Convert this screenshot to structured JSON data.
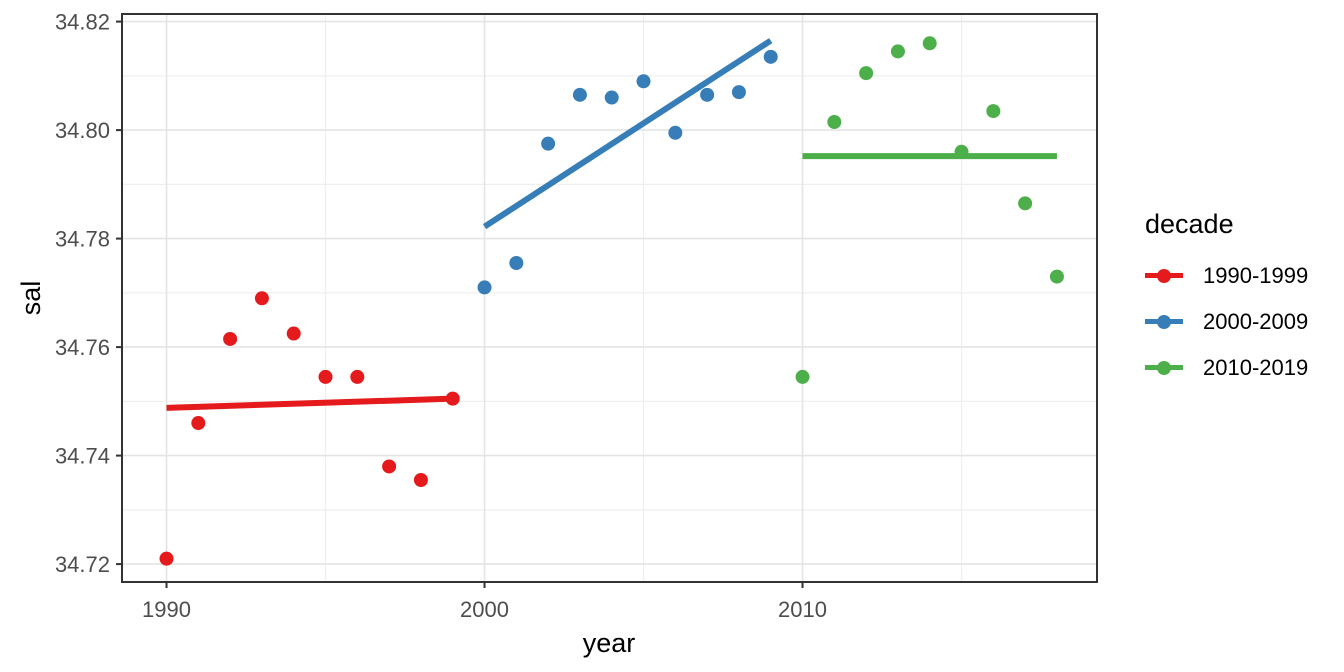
{
  "chart_data": {
    "type": "scatter",
    "title": "",
    "xlabel": "year",
    "ylabel": "sal",
    "legend_title": "decade",
    "legend_position": "right",
    "grid": true,
    "xlim": [
      1988.6,
      2019.26
    ],
    "ylim": [
      34.7167,
      34.8214
    ],
    "x_ticks": [
      {
        "value": 1990,
        "label": "1990"
      },
      {
        "value": 2000,
        "label": "2000"
      },
      {
        "value": 2010,
        "label": "2010"
      }
    ],
    "x_minor_ticks": [
      1995,
      2005,
      2015
    ],
    "y_ticks": [
      {
        "value": 34.72,
        "label": "34.72"
      },
      {
        "value": 34.74,
        "label": "34.74"
      },
      {
        "value": 34.76,
        "label": "34.76"
      },
      {
        "value": 34.78,
        "label": "34.78"
      },
      {
        "value": 34.8,
        "label": "34.80"
      },
      {
        "value": 34.82,
        "label": "34.82"
      }
    ],
    "y_minor_ticks": [
      34.73,
      34.75,
      34.77,
      34.79,
      34.81
    ],
    "series": [
      {
        "name": "1990-1999",
        "color": "#E41A1C",
        "x": [
          1990,
          1991,
          1992,
          1993,
          1994,
          1995,
          1996,
          1997,
          1998,
          1999
        ],
        "y": [
          34.721,
          34.746,
          34.7615,
          34.769,
          34.7625,
          34.7545,
          34.7545,
          34.738,
          34.7355,
          34.7505
        ],
        "trend": {
          "x": [
            1990,
            1999
          ],
          "y": [
            34.7488,
            34.7505
          ]
        }
      },
      {
        "name": "2000-2009",
        "color": "#377EB8",
        "x": [
          2000,
          2001,
          2002,
          2003,
          2004,
          2005,
          2006,
          2007,
          2008,
          2009
        ],
        "y": [
          34.771,
          34.7755,
          34.7975,
          34.8065,
          34.806,
          34.809,
          34.7995,
          34.8065,
          34.807,
          34.8135
        ],
        "trend": {
          "x": [
            2000,
            2009
          ],
          "y": [
            34.7822,
            34.8165
          ]
        }
      },
      {
        "name": "2010-2019",
        "color": "#4DAF4A",
        "x": [
          2010,
          2011,
          2012,
          2013,
          2014,
          2015,
          2016,
          2017,
          2018
        ],
        "y": [
          34.7545,
          34.8015,
          34.8105,
          34.8145,
          34.816,
          34.796,
          34.8035,
          34.7865,
          34.773
        ],
        "trend": {
          "x": [
            2010,
            2018
          ],
          "y": [
            34.7952,
            34.7952
          ]
        }
      }
    ]
  },
  "styles": {
    "background": "#FFFFFF",
    "axis_text_color": "#4D4D4D",
    "title_color": "#000000",
    "grid_major_color": "#E4E4E4",
    "grid_minor_color": "#EFEFEF",
    "panel_border_color": "#333333",
    "tick_mark_color": "#333333"
  }
}
